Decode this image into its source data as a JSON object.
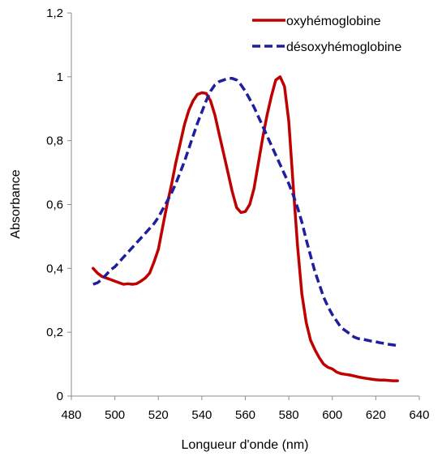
{
  "chart_data": {
    "type": "line",
    "xlabel": "Longueur d'onde (nm)",
    "ylabel": "Absorbance",
    "xlim": [
      480,
      640
    ],
    "ylim": [
      0,
      1.2
    ],
    "x_ticks": [
      "480",
      "500",
      "520",
      "540",
      "560",
      "580",
      "600",
      "620",
      "640"
    ],
    "y_ticks": [
      "0",
      "0,2",
      "0,4",
      "0,6",
      "0,8",
      "1",
      "1,2"
    ],
    "grid": false,
    "legend_position": "top-right",
    "series": [
      {
        "name": "oxyhémoglobine",
        "color": "#c00000",
        "style": "solid",
        "points": [
          [
            490,
            0.4
          ],
          [
            492,
            0.385
          ],
          [
            494,
            0.375
          ],
          [
            496,
            0.37
          ],
          [
            498,
            0.365
          ],
          [
            500,
            0.36
          ],
          [
            502,
            0.355
          ],
          [
            504,
            0.35
          ],
          [
            506,
            0.352
          ],
          [
            508,
            0.35
          ],
          [
            510,
            0.352
          ],
          [
            512,
            0.36
          ],
          [
            514,
            0.37
          ],
          [
            516,
            0.385
          ],
          [
            518,
            0.42
          ],
          [
            520,
            0.46
          ],
          [
            522,
            0.53
          ],
          [
            524,
            0.6
          ],
          [
            526,
            0.66
          ],
          [
            528,
            0.73
          ],
          [
            530,
            0.79
          ],
          [
            532,
            0.85
          ],
          [
            534,
            0.895
          ],
          [
            536,
            0.925
          ],
          [
            538,
            0.945
          ],
          [
            540,
            0.95
          ],
          [
            542,
            0.948
          ],
          [
            544,
            0.925
          ],
          [
            546,
            0.88
          ],
          [
            548,
            0.82
          ],
          [
            550,
            0.76
          ],
          [
            552,
            0.7
          ],
          [
            554,
            0.64
          ],
          [
            556,
            0.59
          ],
          [
            558,
            0.575
          ],
          [
            560,
            0.578
          ],
          [
            562,
            0.6
          ],
          [
            564,
            0.65
          ],
          [
            566,
            0.73
          ],
          [
            568,
            0.81
          ],
          [
            570,
            0.88
          ],
          [
            572,
            0.94
          ],
          [
            574,
            0.99
          ],
          [
            576,
            1.0
          ],
          [
            578,
            0.97
          ],
          [
            580,
            0.86
          ],
          [
            582,
            0.66
          ],
          [
            584,
            0.47
          ],
          [
            586,
            0.32
          ],
          [
            588,
            0.23
          ],
          [
            590,
            0.175
          ],
          [
            592,
            0.145
          ],
          [
            594,
            0.12
          ],
          [
            596,
            0.1
          ],
          [
            598,
            0.09
          ],
          [
            600,
            0.085
          ],
          [
            602,
            0.075
          ],
          [
            604,
            0.07
          ],
          [
            606,
            0.068
          ],
          [
            608,
            0.066
          ],
          [
            610,
            0.063
          ],
          [
            612,
            0.06
          ],
          [
            614,
            0.057
          ],
          [
            616,
            0.055
          ],
          [
            618,
            0.053
          ],
          [
            620,
            0.051
          ],
          [
            622,
            0.05
          ],
          [
            624,
            0.05
          ],
          [
            626,
            0.049
          ],
          [
            628,
            0.048
          ],
          [
            630,
            0.048
          ]
        ]
      },
      {
        "name": "désoxyhémoglobine",
        "color": "#1f1f9e",
        "style": "dashed",
        "points": [
          [
            490,
            0.35
          ],
          [
            492,
            0.355
          ],
          [
            494,
            0.365
          ],
          [
            496,
            0.38
          ],
          [
            498,
            0.395
          ],
          [
            500,
            0.405
          ],
          [
            502,
            0.42
          ],
          [
            504,
            0.435
          ],
          [
            506,
            0.45
          ],
          [
            508,
            0.465
          ],
          [
            510,
            0.48
          ],
          [
            512,
            0.495
          ],
          [
            514,
            0.51
          ],
          [
            516,
            0.525
          ],
          [
            518,
            0.54
          ],
          [
            520,
            0.56
          ],
          [
            522,
            0.585
          ],
          [
            524,
            0.61
          ],
          [
            526,
            0.635
          ],
          [
            528,
            0.665
          ],
          [
            530,
            0.7
          ],
          [
            532,
            0.735
          ],
          [
            534,
            0.775
          ],
          [
            536,
            0.815
          ],
          [
            538,
            0.855
          ],
          [
            540,
            0.89
          ],
          [
            542,
            0.925
          ],
          [
            544,
            0.955
          ],
          [
            546,
            0.975
          ],
          [
            548,
            0.985
          ],
          [
            550,
            0.99
          ],
          [
            552,
            0.995
          ],
          [
            554,
            0.995
          ],
          [
            556,
            0.99
          ],
          [
            558,
            0.975
          ],
          [
            560,
            0.955
          ],
          [
            562,
            0.93
          ],
          [
            564,
            0.905
          ],
          [
            566,
            0.875
          ],
          [
            568,
            0.845
          ],
          [
            570,
            0.815
          ],
          [
            572,
            0.785
          ],
          [
            574,
            0.755
          ],
          [
            576,
            0.725
          ],
          [
            578,
            0.695
          ],
          [
            580,
            0.665
          ],
          [
            582,
            0.63
          ],
          [
            584,
            0.59
          ],
          [
            586,
            0.545
          ],
          [
            588,
            0.49
          ],
          [
            590,
            0.44
          ],
          [
            592,
            0.39
          ],
          [
            594,
            0.35
          ],
          [
            596,
            0.31
          ],
          [
            598,
            0.28
          ],
          [
            600,
            0.255
          ],
          [
            602,
            0.235
          ],
          [
            604,
            0.215
          ],
          [
            606,
            0.205
          ],
          [
            608,
            0.195
          ],
          [
            610,
            0.185
          ],
          [
            612,
            0.18
          ],
          [
            614,
            0.178
          ],
          [
            616,
            0.175
          ],
          [
            618,
            0.172
          ],
          [
            620,
            0.17
          ],
          [
            622,
            0.167
          ],
          [
            624,
            0.165
          ],
          [
            626,
            0.162
          ],
          [
            628,
            0.16
          ],
          [
            630,
            0.158
          ]
        ]
      }
    ]
  }
}
